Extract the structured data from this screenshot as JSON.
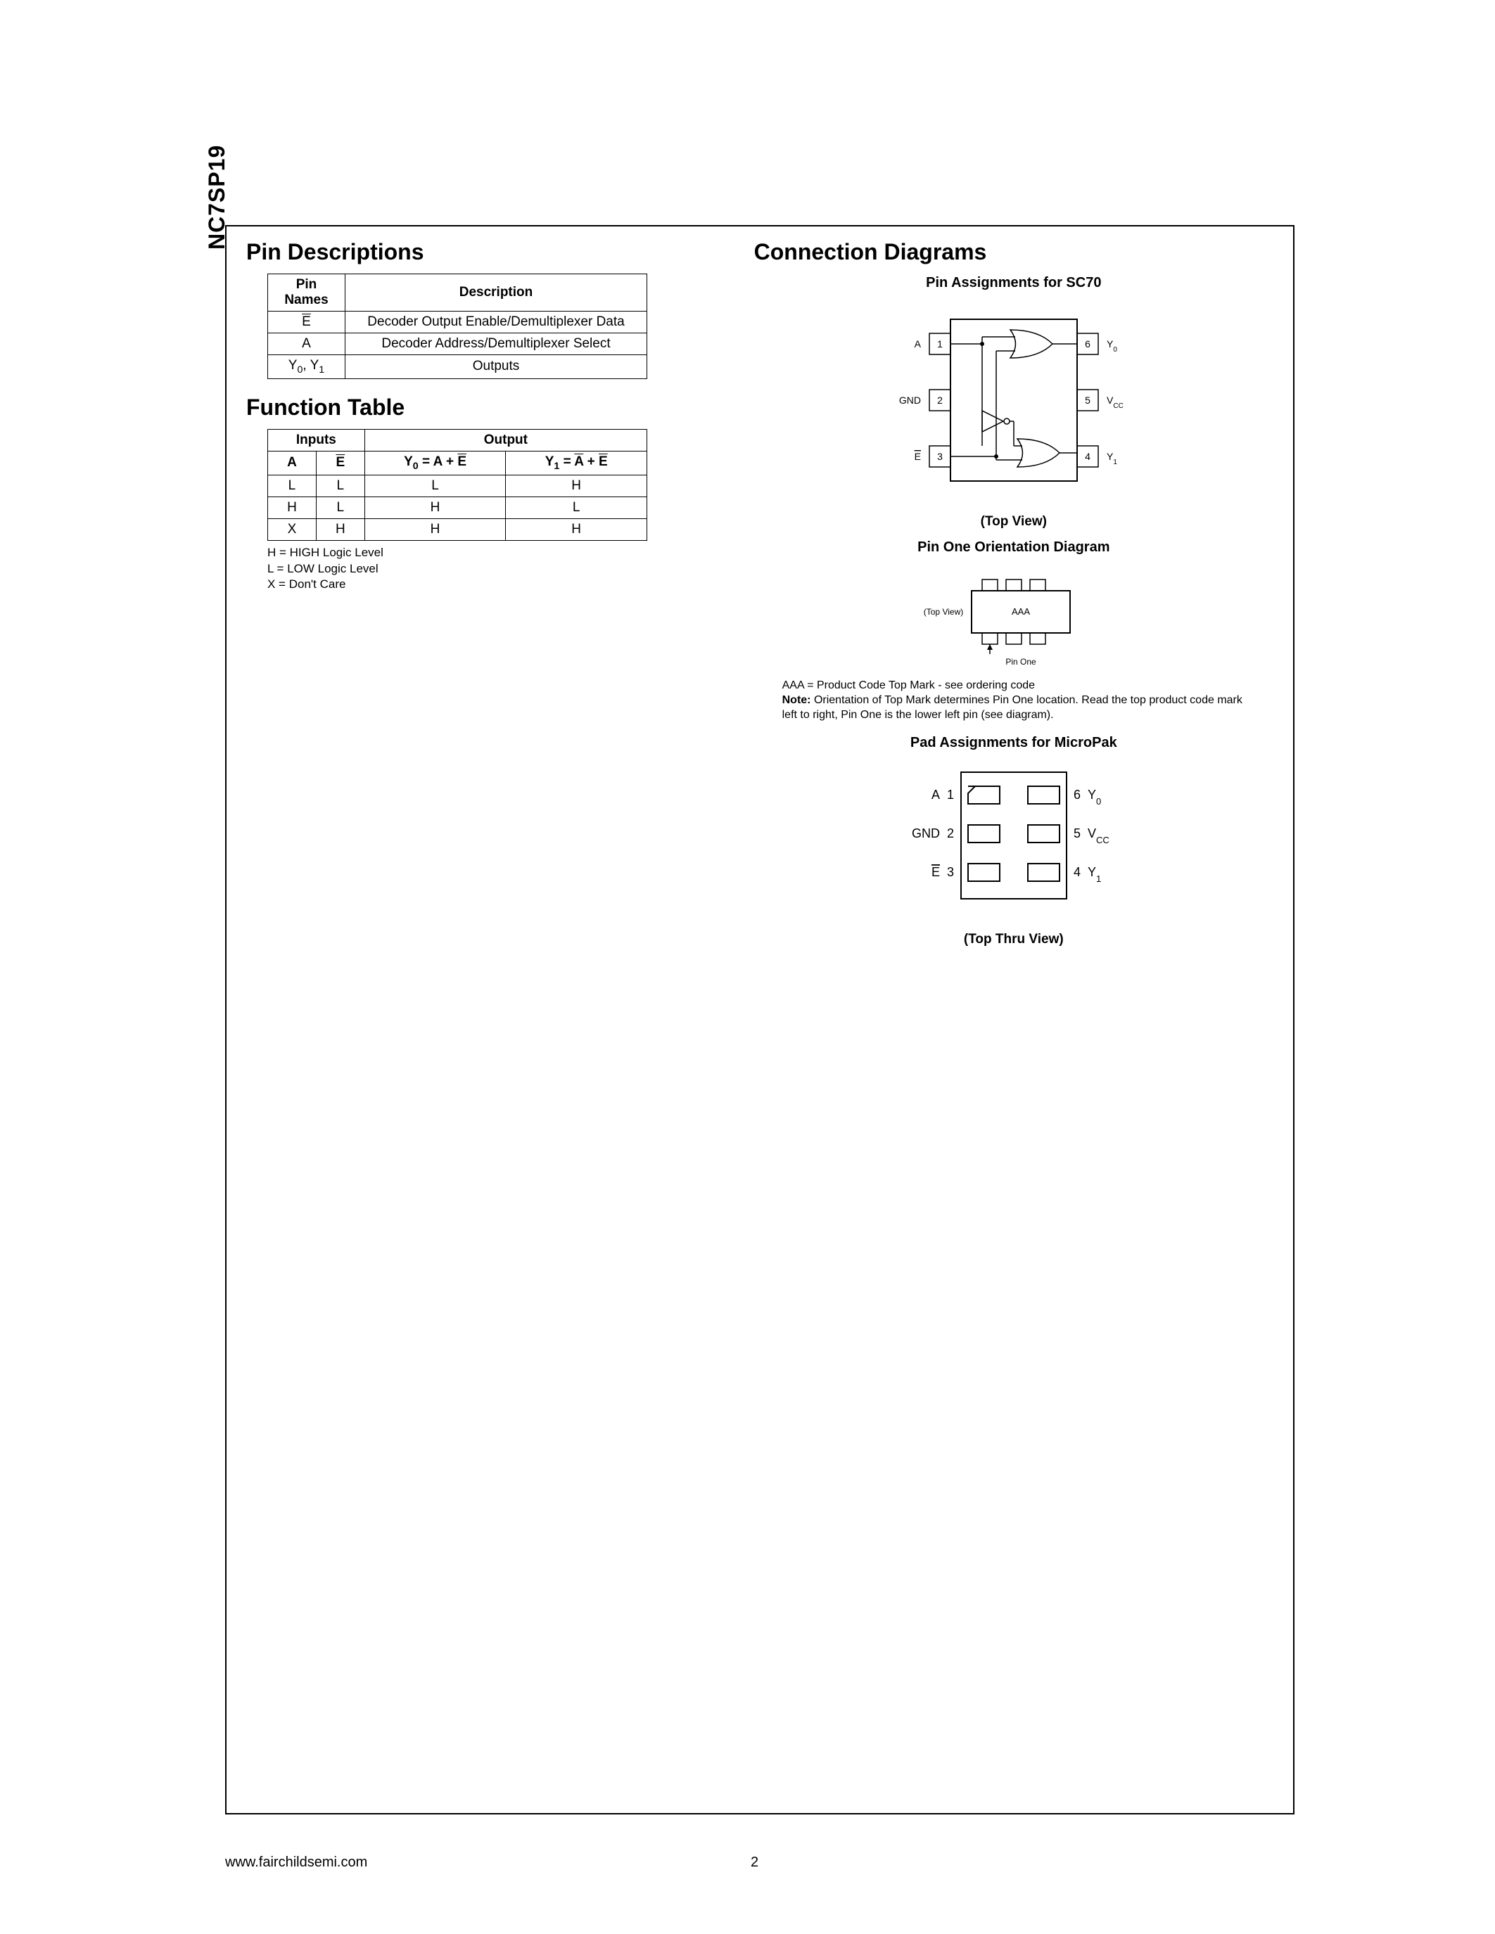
{
  "part_number": "NC7SP19",
  "headings": {
    "pin_desc": "Pin Descriptions",
    "func_table": "Function Table",
    "conn_diag": "Connection Diagrams"
  },
  "pin_desc_table": {
    "headers": [
      "Pin Names",
      "Description"
    ],
    "rows": [
      {
        "name_html": "<span class='overline'>E</span>",
        "desc": "Decoder Output Enable/Demultiplexer Data"
      },
      {
        "name_html": "A",
        "desc": "Decoder Address/Demultiplexer Select"
      },
      {
        "name_html": "Y<span class='sub'>0</span>, Y<span class='sub'>1</span>",
        "desc": "Outputs"
      }
    ]
  },
  "func_table": {
    "group_headers": [
      "Inputs",
      "Output"
    ],
    "col_headers": [
      "A",
      "<span class='overline'>E</span>",
      "Y<span class='sub'>0</span> = A + <span class='overline'>E</span>",
      "Y<span class='sub'>1</span> = <span class='overline'>A</span> + <span class='overline'>E</span>"
    ],
    "rows": [
      [
        "L",
        "L",
        "L",
        "H"
      ],
      [
        "H",
        "L",
        "H",
        "L"
      ],
      [
        "X",
        "H",
        "H",
        "H"
      ]
    ],
    "legend": [
      "H = HIGH Logic Level",
      "L = LOW Logic Level",
      "X = Don't Care"
    ]
  },
  "sc70": {
    "title": "Pin Assignments for SC70",
    "caption": "(Top View)",
    "pins_left": [
      {
        "num": "1",
        "label": "A"
      },
      {
        "num": "2",
        "label": "GND"
      },
      {
        "num": "3",
        "label_html": "<tspan text-decoration='overline'>E</tspan>"
      }
    ],
    "pins_right": [
      {
        "num": "6",
        "label_html": "Y<tspan baseline-shift='sub' font-size='10'>0</tspan>"
      },
      {
        "num": "5",
        "label_html": "V<tspan baseline-shift='sub' font-size='10'>CC</tspan>"
      },
      {
        "num": "4",
        "label_html": "Y<tspan baseline-shift='sub' font-size='10'>1</tspan>"
      }
    ]
  },
  "orientation": {
    "title": "Pin One Orientation Diagram",
    "topview": "(Top View)",
    "aaa": "AAA",
    "pinone": "Pin One",
    "note": "AAA = Product Code Top Mark - see ordering code",
    "note2_bold": "Note:",
    "note2": "Orientation of Top Mark determines Pin One location. Read the top product code mark left to right, Pin One is the lower left pin (see diagram)."
  },
  "micropak": {
    "title": "Pad Assignments for MicroPak",
    "caption": "(Top Thru View)",
    "pins_left": [
      {
        "num": "1",
        "label": "A"
      },
      {
        "num": "2",
        "label": "GND"
      },
      {
        "num": "3",
        "label_html": "<tspan text-decoration='overline'>E</tspan>"
      }
    ],
    "pins_right": [
      {
        "num": "6",
        "label_html": "Y<tspan baseline-shift='sub' font-size='13'>0</tspan>"
      },
      {
        "num": "5",
        "label_html": "V<tspan baseline-shift='sub' font-size='13'>CC</tspan>"
      },
      {
        "num": "4",
        "label_html": "Y<tspan baseline-shift='sub' font-size='13'>1</tspan>"
      }
    ]
  },
  "footer": {
    "url": "www.fairchildsemi.com",
    "page": "2"
  }
}
